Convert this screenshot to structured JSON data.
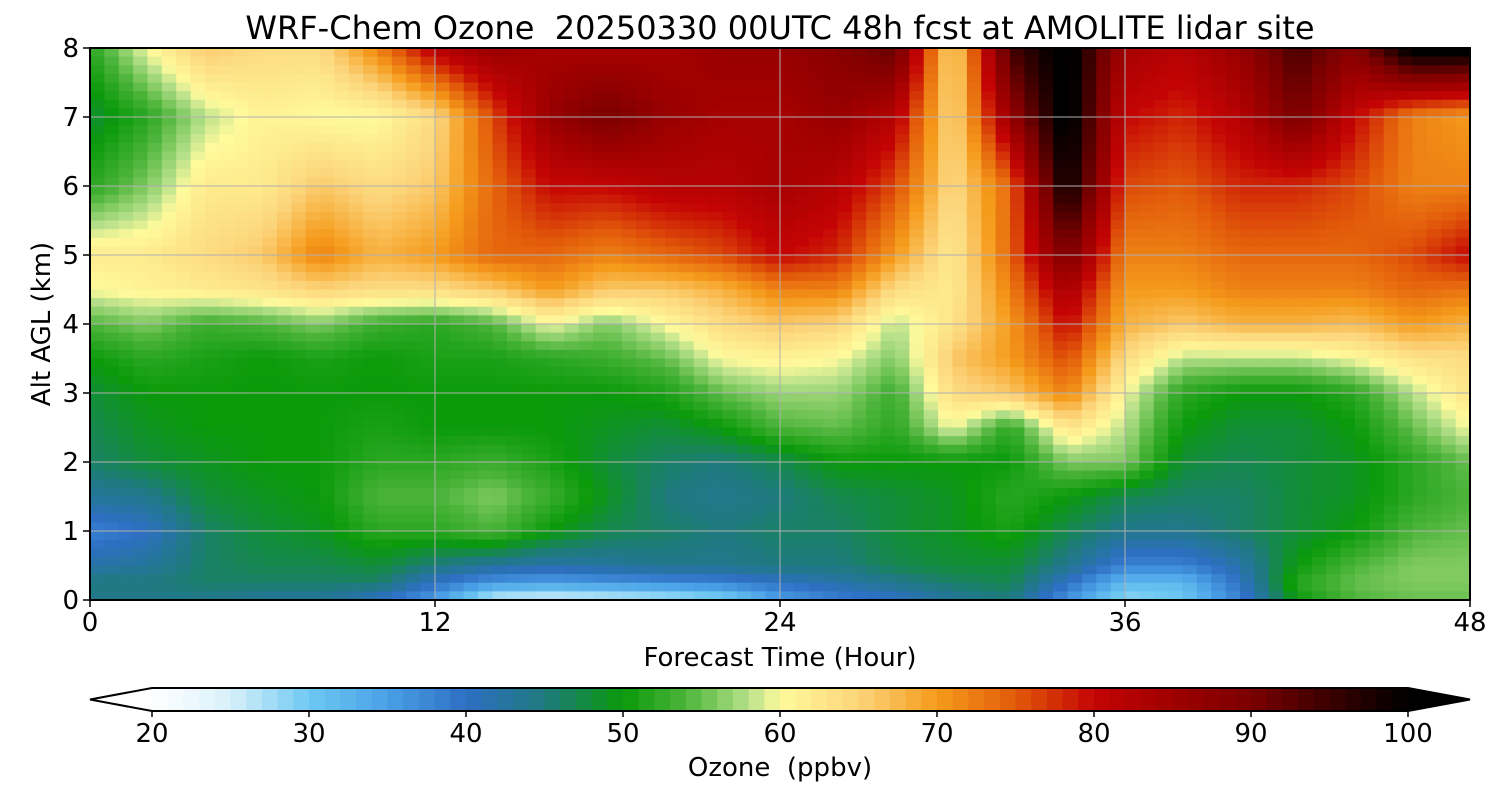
{
  "chart_data": {
    "type": "heatmap",
    "title": "WRF-Chem Ozone  20250330 00UTC 48h fcst at AMOLITE lidar site",
    "xlabel": "Forecast Time (Hour)",
    "ylabel": "Alt AGL (km)",
    "xlim": [
      0,
      48
    ],
    "ylim": [
      0,
      8
    ],
    "xticks": [
      "0",
      "12",
      "24",
      "36",
      "48"
    ],
    "xtick_values": [
      0,
      12,
      24,
      36,
      48
    ],
    "yticks": [
      "0",
      "1",
      "2",
      "3",
      "4",
      "5",
      "6",
      "7",
      "8"
    ],
    "ytick_values": [
      0,
      1,
      2,
      3,
      4,
      5,
      6,
      7,
      8
    ],
    "grid": true,
    "x": [
      0,
      2,
      4,
      6,
      8,
      10,
      12,
      14,
      16,
      18,
      20,
      22,
      24,
      26,
      28,
      30,
      32,
      34,
      36,
      38,
      40,
      42,
      44,
      46,
      48
    ],
    "y": [
      0,
      0.25,
      0.5,
      1,
      1.5,
      2,
      2.5,
      3,
      3.5,
      4,
      4.5,
      5,
      6,
      7,
      8
    ],
    "z": [
      [
        44,
        44,
        44,
        43,
        43,
        40,
        35,
        25,
        24,
        25,
        26,
        28,
        35,
        38,
        40,
        43,
        45,
        36,
        28,
        30,
        38,
        50,
        54,
        55,
        55
      ],
      [
        45,
        45,
        46,
        46,
        46,
        46,
        40,
        36,
        35,
        36,
        37,
        38,
        40,
        42,
        44,
        46,
        47,
        40,
        32,
        32,
        40,
        52,
        55,
        56,
        56
      ],
      [
        42,
        43,
        46,
        47,
        47,
        48,
        45,
        43,
        42,
        43,
        44,
        44,
        45,
        45,
        47,
        48,
        48,
        44,
        38,
        38,
        42,
        50,
        54,
        56,
        56
      ],
      [
        38,
        40,
        46,
        48,
        49,
        52,
        52,
        54,
        50,
        47,
        46,
        45,
        46,
        46,
        48,
        49,
        51,
        47,
        44,
        44,
        46,
        48,
        50,
        54,
        55
      ],
      [
        43,
        44,
        48,
        49,
        50,
        54,
        54,
        56,
        53,
        49,
        45,
        44,
        45,
        47,
        48,
        49,
        52,
        50,
        47,
        46,
        46,
        48,
        49,
        52,
        54
      ],
      [
        46,
        48,
        49,
        50,
        50,
        52,
        52,
        53,
        51,
        48,
        46,
        45,
        47,
        50,
        50,
        50,
        50,
        56,
        56,
        48,
        47,
        48,
        49,
        52,
        55
      ],
      [
        47,
        49,
        50,
        50,
        50,
        51,
        50,
        50,
        50,
        49,
        48,
        50,
        54,
        55,
        52,
        60,
        52,
        63,
        58,
        50,
        48,
        48,
        50,
        55,
        60
      ],
      [
        48,
        50,
        50,
        50,
        50,
        50,
        50,
        50,
        50,
        50,
        51,
        55,
        57,
        57,
        53,
        64,
        66,
        72,
        60,
        52,
        50,
        50,
        52,
        58,
        63
      ],
      [
        50,
        52,
        51,
        50,
        51,
        50,
        51,
        51,
        52,
        53,
        55,
        60,
        61,
        60,
        56,
        66,
        70,
        76,
        64,
        58,
        58,
        58,
        60,
        63,
        64
      ],
      [
        54,
        56,
        53,
        54,
        56,
        53,
        52,
        54,
        60,
        56,
        60,
        64,
        66,
        65,
        58,
        63,
        70,
        80,
        68,
        66,
        68,
        68,
        67,
        70,
        68
      ],
      [
        60,
        61,
        62,
        63,
        65,
        64,
        64,
        66,
        70,
        66,
        66,
        68,
        72,
        72,
        64,
        62,
        72,
        84,
        70,
        70,
        72,
        72,
        72,
        74,
        73
      ],
      [
        62,
        62,
        64,
        66,
        72,
        68,
        70,
        74,
        74,
        72,
        74,
        76,
        80,
        78,
        70,
        62,
        74,
        90,
        72,
        72,
        74,
        74,
        74,
        76,
        80
      ],
      [
        52,
        56,
        62,
        62,
        66,
        64,
        66,
        74,
        80,
        80,
        82,
        82,
        84,
        82,
        76,
        64,
        74,
        100,
        76,
        75,
        78,
        78,
        76,
        72,
        72
      ],
      [
        48,
        52,
        58,
        61,
        60,
        60,
        64,
        76,
        86,
        90,
        86,
        84,
        84,
        86,
        82,
        64,
        86,
        102,
        80,
        78,
        82,
        90,
        80,
        72,
        70
      ],
      [
        52,
        60,
        66,
        64,
        64,
        72,
        82,
        86,
        84,
        84,
        84,
        86,
        86,
        88,
        92,
        64,
        94,
        102,
        84,
        82,
        86,
        94,
        88,
        102,
        102
      ]
    ],
    "colorbar": {
      "label": "Ozone  (ppbv)",
      "min": 20,
      "max": 100,
      "ticks": [
        "20",
        "30",
        "40",
        "50",
        "60",
        "70",
        "80",
        "90",
        "100"
      ],
      "tick_values": [
        20,
        30,
        40,
        50,
        60,
        70,
        80,
        90,
        100
      ],
      "extend": "both",
      "colors": [
        {
          "v": 20,
          "c": "#ffffff"
        },
        {
          "v": 25,
          "c": "#d8f0fb"
        },
        {
          "v": 30,
          "c": "#6ec8f2"
        },
        {
          "v": 35,
          "c": "#4aa0e6"
        },
        {
          "v": 40,
          "c": "#2e6fc4"
        },
        {
          "v": 45,
          "c": "#1e7a7e"
        },
        {
          "v": 50,
          "c": "#0a9a0a"
        },
        {
          "v": 54,
          "c": "#4cb43a"
        },
        {
          "v": 58,
          "c": "#b6e08a"
        },
        {
          "v": 60,
          "c": "#fffa9c"
        },
        {
          "v": 65,
          "c": "#fcd47a"
        },
        {
          "v": 70,
          "c": "#f59b1b"
        },
        {
          "v": 75,
          "c": "#e25a0a"
        },
        {
          "v": 80,
          "c": "#c40404"
        },
        {
          "v": 85,
          "c": "#9f0000"
        },
        {
          "v": 90,
          "c": "#7a0000"
        },
        {
          "v": 95,
          "c": "#3a0000"
        },
        {
          "v": 100,
          "c": "#000000"
        }
      ]
    }
  }
}
